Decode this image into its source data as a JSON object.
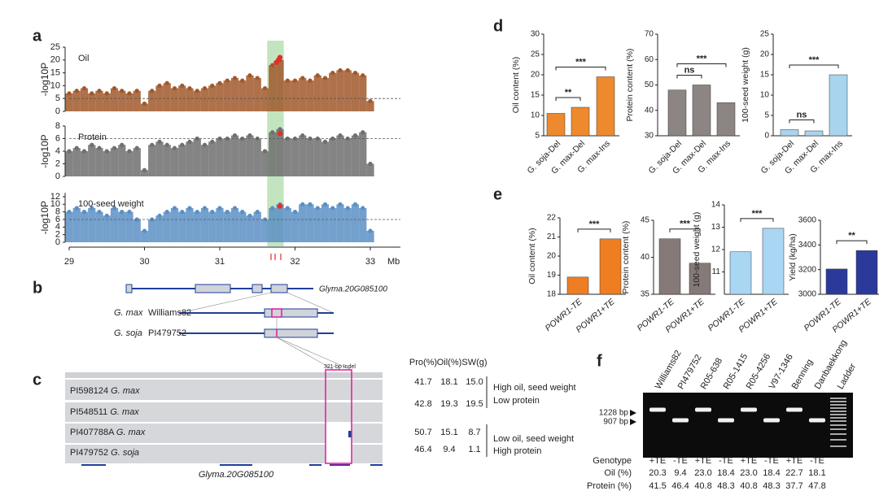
{
  "panels": [
    "a",
    "b",
    "c",
    "d",
    "e",
    "f"
  ],
  "chart_data": [
    {
      "type": "manhattan",
      "label": "Oil",
      "ylabel": "-log10P",
      "color": "#a0582a",
      "x": [
        29,
        29.1,
        29.2,
        29.3,
        29.4,
        29.5,
        29.6,
        29.7,
        29.8,
        29.9,
        30,
        30.1,
        30.2,
        30.3,
        30.4,
        30.5,
        30.6,
        30.7,
        30.8,
        30.9,
        31,
        31.1,
        31.2,
        31.3,
        31.4,
        31.5,
        31.6,
        31.7,
        31.8,
        31.9,
        32,
        32.1,
        32.2,
        32.3,
        32.4,
        32.5,
        32.6,
        32.7,
        32.8,
        32.9,
        33
      ],
      "values": [
        7,
        8,
        9,
        7,
        8,
        7,
        9,
        8,
        7,
        8,
        3,
        8,
        10,
        11,
        9,
        10,
        9,
        8,
        9,
        10,
        11,
        12,
        13,
        12,
        14,
        13,
        9,
        18,
        20,
        12,
        12,
        13,
        12,
        14,
        13,
        15,
        16,
        16,
        15,
        14,
        4
      ],
      "highlight": {
        "color": "#e0302a",
        "x": [
          31.75,
          31.8,
          31.78
        ],
        "values": [
          19,
          21,
          20
        ]
      },
      "threshold": 5,
      "region": [
        31.63,
        31.85
      ],
      "xlim": [
        29,
        33.4
      ],
      "ylim": [
        0,
        25
      ],
      "yticks": [
        0,
        5,
        10,
        15,
        20,
        25
      ]
    },
    {
      "type": "manhattan",
      "label": "Protein",
      "ylabel": "-log10P",
      "color": "#6f6f6f",
      "x": [
        29,
        29.1,
        29.2,
        29.3,
        29.4,
        29.5,
        29.6,
        29.7,
        29.8,
        29.9,
        30,
        30.1,
        30.2,
        30.3,
        30.4,
        30.5,
        30.6,
        30.7,
        30.8,
        30.9,
        31,
        31.1,
        31.2,
        31.3,
        31.4,
        31.5,
        31.6,
        31.7,
        31.8,
        31.9,
        32,
        32.1,
        32.2,
        32.3,
        32.4,
        32.5,
        32.6,
        32.7,
        32.8,
        32.9,
        33
      ],
      "values": [
        4,
        4.5,
        4,
        5,
        4.5,
        4,
        4.5,
        5,
        4,
        4.5,
        1,
        5,
        5.5,
        5,
        4.5,
        5,
        5.5,
        6,
        5,
        5.5,
        6,
        6,
        6.5,
        6,
        6.5,
        6,
        4,
        7,
        7.5,
        6,
        6,
        6.5,
        6,
        6,
        5.5,
        6,
        6.5,
        6,
        6.5,
        7,
        2
      ],
      "highlight": {
        "color": "#e0302a",
        "x": [
          31.8
        ],
        "values": [
          6.8
        ]
      },
      "threshold": 6,
      "xlim": [
        29,
        33.4
      ],
      "ylim": [
        0,
        8
      ],
      "yticks": [
        0,
        2,
        4,
        6,
        8
      ]
    },
    {
      "type": "manhattan",
      "label": "100-seed weight",
      "ylabel": "-log10P",
      "color": "#5b8fc4",
      "x": [
        29,
        29.1,
        29.2,
        29.3,
        29.4,
        29.5,
        29.6,
        29.7,
        29.8,
        29.9,
        30,
        30.1,
        30.2,
        30.3,
        30.4,
        30.5,
        30.6,
        30.7,
        30.8,
        30.9,
        31,
        31.1,
        31.2,
        31.3,
        31.4,
        31.5,
        31.6,
        31.7,
        31.8,
        31.9,
        32,
        32.1,
        32.2,
        32.3,
        32.4,
        32.5,
        32.6,
        32.7,
        32.8,
        32.9,
        33
      ],
      "values": [
        8,
        9,
        8,
        9,
        8,
        7,
        9,
        8,
        8,
        6,
        3,
        6,
        7,
        8,
        9,
        8,
        9,
        8,
        9,
        8,
        9,
        8,
        9,
        8,
        7,
        8,
        6,
        9,
        10,
        9,
        8,
        10,
        10,
        9,
        10,
        9,
        10,
        9,
        10,
        9,
        3
      ],
      "highlight": {
        "color": "#e0302a",
        "x": [
          31.8
        ],
        "values": [
          9.5
        ]
      },
      "threshold": 6,
      "xlim": [
        29,
        33.4
      ],
      "ylim": [
        0,
        13
      ],
      "yticks": [
        0,
        2,
        4,
        6,
        8,
        10,
        12
      ],
      "xticks": [
        29,
        30,
        31,
        32,
        33
      ],
      "xlabel": "Mb"
    },
    {
      "type": "bar",
      "ylabel": "Oil content (%)",
      "categories": [
        "G. soja-Del",
        "G. max-Del",
        "G. max-Ins"
      ],
      "values": [
        10.5,
        12,
        19.5
      ],
      "colors": [
        "#ee8a2e",
        "#ee8a2e",
        "#ee8a2e"
      ],
      "significance": [
        "**",
        "***"
      ],
      "ylim": [
        5,
        30
      ],
      "yticks": [
        5,
        10,
        15,
        20,
        25,
        30
      ]
    },
    {
      "type": "bar",
      "ylabel": "Protein content (%)",
      "categories": [
        "G. soja-Del",
        "G. max-Del",
        "G. max-Ins"
      ],
      "values": [
        48,
        50,
        43
      ],
      "colors": [
        "#8c8583",
        "#8c8583",
        "#8c8583"
      ],
      "significance": [
        "ns",
        "***"
      ],
      "ylim": [
        30,
        70
      ],
      "yticks": [
        30,
        40,
        50,
        60,
        70
      ]
    },
    {
      "type": "bar",
      "ylabel": "100-seed weight (g)",
      "categories": [
        "G. soja-Del",
        "G. max-Del",
        "G. max-Ins"
      ],
      "values": [
        1.5,
        1.2,
        15
      ],
      "colors": [
        "#a8d4ef",
        "#a8d4ef",
        "#a8d4ef"
      ],
      "significance": [
        "ns",
        "***"
      ],
      "ylim": [
        0,
        25
      ],
      "yticks": [
        0,
        5,
        10,
        15,
        20,
        25
      ]
    },
    {
      "type": "bar",
      "ylabel": "Oil  content (%)",
      "categories": [
        "POWR1-TE",
        "POWR1+TE"
      ],
      "values": [
        18.9,
        20.9
      ],
      "colors": [
        "#ef7d22",
        "#ef7d22"
      ],
      "significance": [
        "***"
      ],
      "ylim": [
        18,
        22
      ],
      "yticks": [
        18,
        19,
        20,
        21,
        22
      ]
    },
    {
      "type": "bar",
      "ylabel": "Protein content (%)",
      "categories": [
        "POWR1-TE",
        "POWR1+TE"
      ],
      "values": [
        42.5,
        39.2
      ],
      "colors": [
        "#857a78",
        "#857a78"
      ],
      "significance": [
        "***"
      ],
      "ylim": [
        35,
        45
      ],
      "yticks": [
        35,
        40,
        45
      ]
    },
    {
      "type": "bar",
      "ylabel": "100-seed weight (g)",
      "categories": [
        "POWR1-TE",
        "POWR1+TE"
      ],
      "values": [
        11.9,
        12.95
      ],
      "colors": [
        "#a9d6f2",
        "#a9d6f2"
      ],
      "significance": [
        "***"
      ],
      "ylim": [
        10,
        14
      ],
      "yticks": [
        11,
        12,
        13,
        14
      ]
    },
    {
      "type": "bar",
      "ylabel": "Yield (kg/ha)",
      "categories": [
        "POWR1-TE",
        "POWR1+TE"
      ],
      "values": [
        3205,
        3355
      ],
      "colors": [
        "#2b3a9a",
        "#2b3a9a"
      ],
      "significance": [
        "**"
      ],
      "ylim": [
        3000,
        3600
      ],
      "yticks": [
        3000,
        3200,
        3400,
        3600
      ]
    }
  ],
  "gene_model": {
    "gene": "Glyma.20G085100",
    "accessions": [
      {
        "species": "G. max",
        "name": "Williams82"
      },
      {
        "species": "G. soja",
        "name": "PI479752"
      }
    ]
  },
  "alignment": {
    "headers": [
      "Pro(%)",
      "Oil(%)",
      "SW(g)"
    ],
    "indel": "321-bp Indel",
    "rows": [
      {
        "name": "PI598124",
        "species": "G. max",
        "values": [
          41.7,
          18.1,
          15
        ],
        "value_labels": [
          "41.7",
          "18.1",
          "15.0"
        ]
      },
      {
        "name": "PI548511",
        "species": "G. max",
        "values": [
          42.8,
          19.3,
          19.5
        ]
      },
      {
        "name": "PI407788A",
        "species": "G. max",
        "values": [
          50.7,
          15.1,
          8.7
        ]
      },
      {
        "name": "PI479752",
        "species": "G. soja",
        "values": [
          46.4,
          9.4,
          1.1
        ]
      }
    ],
    "groups": [
      [
        "High oil, seed weight",
        "Low protein"
      ],
      [
        "Low oil, seed weight",
        "High protein"
      ]
    ],
    "gene": "Glyma.20G085100"
  },
  "gel": {
    "lanes": [
      "Williams82",
      "PI479752",
      "R05-638",
      "R05-1415",
      "R05-4256",
      "V97-1346",
      "Benning",
      "Danbaekkong",
      "Ladder"
    ],
    "markers": [
      "1228 bp",
      "907 bp"
    ],
    "genotype": {
      "label": "Genotype",
      "values": [
        "+TE",
        "-TE",
        "+TE",
        "-TE",
        "+TE",
        "-TE",
        "+TE",
        "-TE"
      ]
    },
    "oil": {
      "label": "Oil (%)",
      "values": [
        20.3,
        9.4,
        23,
        18.4,
        23,
        18.4,
        22.7,
        18.1
      ],
      "value_labels": [
        "20.3",
        "9.4",
        "23.0",
        "18.4",
        "23.0",
        "18.4",
        "22.7",
        "18.1"
      ]
    },
    "protein": {
      "label": "Protein (%)",
      "values": [
        41.5,
        46.4,
        40.8,
        48.3,
        40.8,
        48.3,
        37.7,
        47.8
      ]
    }
  }
}
